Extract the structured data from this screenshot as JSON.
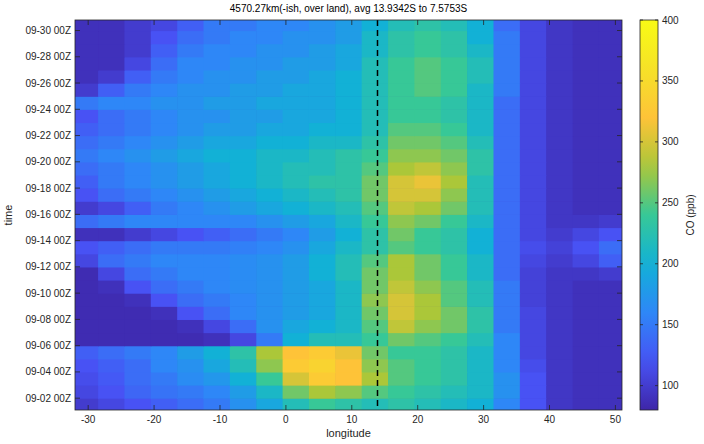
{
  "chart_data": {
    "type": "heatmap",
    "title": "4570.27km(-ish, over land), avg 13.9342S to 7.5753S",
    "x_label": "longitude",
    "y_label": "time",
    "colorbar_label": "CO (ppb)",
    "xlim": [
      -32,
      51
    ],
    "ylim": [
      1.1,
      30.8
    ],
    "xticks": [
      -30,
      -20,
      -10,
      0,
      10,
      20,
      30,
      40,
      50
    ],
    "yticks": [
      {
        "value": 2,
        "label": "09-02 00Z"
      },
      {
        "value": 4,
        "label": "09-04 00Z"
      },
      {
        "value": 6,
        "label": "09-06 00Z"
      },
      {
        "value": 8,
        "label": "09-08 00Z"
      },
      {
        "value": 10,
        "label": "09-10 00Z"
      },
      {
        "value": 12,
        "label": "09-12 00Z"
      },
      {
        "value": 14,
        "label": "09-14 00Z"
      },
      {
        "value": 16,
        "label": "09-16 00Z"
      },
      {
        "value": 18,
        "label": "09-18 00Z"
      },
      {
        "value": 20,
        "label": "09-20 00Z"
      },
      {
        "value": 22,
        "label": "09-22 00Z"
      },
      {
        "value": 24,
        "label": "09-24 00Z"
      },
      {
        "value": 26,
        "label": "09-26 00Z"
      },
      {
        "value": 28,
        "label": "09-28 00Z"
      },
      {
        "value": 30,
        "label": "09-30 00Z"
      }
    ],
    "clim": [
      80,
      400
    ],
    "cticks": [
      100,
      150,
      200,
      250,
      300,
      350,
      400
    ],
    "vline": 13.9,
    "x": [
      -30.5,
      -26.5,
      -22.5,
      -18.5,
      -14.5,
      -10.5,
      -6.5,
      -2.5,
      1.5,
      5.5,
      9.5,
      13.5,
      17.5,
      21.5,
      25.5,
      29.5,
      33.5,
      37.5,
      41.5,
      45.5,
      49.5
    ],
    "y": [
      1.5,
      2.5,
      3.5,
      4.5,
      5.5,
      6.5,
      7.5,
      8.5,
      9.5,
      10.5,
      11.5,
      12.5,
      13.5,
      14.5,
      15.5,
      16.5,
      17.5,
      18.5,
      19.5,
      20.5,
      21.5,
      22.5,
      23.5,
      24.5,
      25.5,
      26.5,
      27.5,
      28.5,
      29.5,
      30.5
    ],
    "values": [
      [
        100,
        110,
        120,
        130,
        140,
        150,
        170,
        190,
        220,
        240,
        230,
        220,
        230,
        220,
        210,
        200,
        160,
        120,
        95,
        90,
        90
      ],
      [
        110,
        120,
        135,
        145,
        150,
        160,
        180,
        210,
        260,
        280,
        270,
        250,
        240,
        230,
        220,
        210,
        170,
        120,
        95,
        90,
        90
      ],
      [
        115,
        125,
        140,
        150,
        165,
        175,
        200,
        240,
        300,
        330,
        320,
        280,
        250,
        240,
        230,
        210,
        170,
        120,
        95,
        90,
        90
      ],
      [
        120,
        130,
        140,
        160,
        170,
        190,
        220,
        270,
        330,
        340,
        320,
        270,
        250,
        240,
        230,
        210,
        160,
        115,
        95,
        90,
        90
      ],
      [
        130,
        140,
        150,
        160,
        180,
        200,
        230,
        280,
        320,
        330,
        310,
        260,
        240,
        240,
        230,
        210,
        160,
        110,
        95,
        90,
        90
      ],
      [
        85,
        85,
        85,
        85,
        85,
        90,
        110,
        150,
        200,
        220,
        220,
        240,
        260,
        250,
        240,
        220,
        160,
        110,
        95,
        90,
        90
      ],
      [
        85,
        85,
        85,
        85,
        90,
        110,
        140,
        170,
        190,
        200,
        210,
        250,
        290,
        270,
        260,
        230,
        150,
        110,
        95,
        90,
        90
      ],
      [
        85,
        85,
        85,
        90,
        120,
        140,
        160,
        170,
        180,
        190,
        210,
        260,
        300,
        280,
        260,
        230,
        150,
        110,
        95,
        90,
        90
      ],
      [
        85,
        85,
        90,
        120,
        140,
        150,
        160,
        170,
        180,
        190,
        210,
        270,
        300,
        280,
        250,
        220,
        150,
        105,
        95,
        90,
        90
      ],
      [
        85,
        90,
        120,
        140,
        150,
        160,
        165,
        170,
        180,
        190,
        210,
        260,
        290,
        270,
        250,
        220,
        150,
        105,
        95,
        90,
        90
      ],
      [
        85,
        110,
        140,
        150,
        160,
        160,
        165,
        170,
        180,
        200,
        220,
        260,
        280,
        260,
        240,
        210,
        140,
        105,
        95,
        95,
        100
      ],
      [
        110,
        140,
        150,
        160,
        160,
        160,
        165,
        170,
        180,
        200,
        220,
        250,
        280,
        260,
        240,
        210,
        140,
        110,
        100,
        110,
        130
      ],
      [
        120,
        130,
        140,
        150,
        150,
        150,
        155,
        160,
        170,
        190,
        210,
        230,
        250,
        240,
        230,
        200,
        140,
        115,
        105,
        120,
        140
      ],
      [
        90,
        90,
        100,
        110,
        120,
        130,
        140,
        150,
        160,
        180,
        200,
        230,
        260,
        240,
        230,
        200,
        140,
        110,
        100,
        110,
        120
      ],
      [
        140,
        150,
        160,
        160,
        160,
        160,
        160,
        170,
        180,
        190,
        210,
        240,
        270,
        260,
        240,
        210,
        140,
        110,
        95,
        95,
        100
      ],
      [
        100,
        110,
        130,
        150,
        160,
        170,
        180,
        190,
        200,
        210,
        220,
        250,
        290,
        280,
        260,
        220,
        140,
        110,
        95,
        90,
        90
      ],
      [
        120,
        140,
        150,
        160,
        170,
        180,
        190,
        200,
        210,
        220,
        230,
        260,
        300,
        300,
        270,
        220,
        140,
        110,
        95,
        90,
        90
      ],
      [
        130,
        150,
        160,
        170,
        180,
        190,
        200,
        210,
        220,
        230,
        230,
        260,
        300,
        310,
        280,
        220,
        140,
        110,
        95,
        90,
        90
      ],
      [
        140,
        150,
        160,
        170,
        180,
        190,
        200,
        210,
        220,
        220,
        230,
        250,
        280,
        290,
        270,
        230,
        140,
        110,
        95,
        90,
        90
      ],
      [
        150,
        160,
        170,
        180,
        190,
        200,
        200,
        210,
        210,
        220,
        230,
        240,
        270,
        270,
        260,
        230,
        140,
        110,
        95,
        90,
        90
      ],
      [
        140,
        150,
        160,
        170,
        180,
        190,
        190,
        200,
        200,
        210,
        210,
        230,
        260,
        260,
        250,
        220,
        140,
        110,
        95,
        90,
        90
      ],
      [
        130,
        140,
        150,
        160,
        170,
        180,
        180,
        190,
        190,
        200,
        200,
        220,
        250,
        250,
        240,
        210,
        140,
        110,
        95,
        90,
        90
      ],
      [
        120,
        140,
        150,
        160,
        170,
        170,
        180,
        180,
        190,
        190,
        200,
        220,
        240,
        240,
        230,
        210,
        140,
        110,
        95,
        90,
        90
      ],
      [
        150,
        160,
        160,
        170,
        170,
        180,
        180,
        190,
        190,
        190,
        200,
        220,
        240,
        240,
        230,
        210,
        140,
        110,
        95,
        90,
        90
      ],
      [
        100,
        130,
        150,
        160,
        170,
        170,
        180,
        180,
        190,
        190,
        200,
        220,
        240,
        250,
        240,
        210,
        150,
        110,
        95,
        90,
        90
      ],
      [
        90,
        100,
        130,
        150,
        160,
        170,
        170,
        180,
        180,
        190,
        200,
        220,
        240,
        250,
        240,
        220,
        150,
        110,
        95,
        90,
        90
      ],
      [
        90,
        90,
        110,
        140,
        160,
        160,
        170,
        170,
        180,
        180,
        190,
        220,
        240,
        250,
        240,
        220,
        150,
        110,
        95,
        90,
        90
      ],
      [
        90,
        90,
        100,
        130,
        150,
        160,
        160,
        170,
        170,
        180,
        190,
        210,
        230,
        240,
        230,
        210,
        150,
        110,
        95,
        90,
        90
      ],
      [
        90,
        90,
        100,
        120,
        140,
        150,
        160,
        160,
        170,
        170,
        180,
        210,
        230,
        240,
        230,
        200,
        150,
        110,
        95,
        90,
        90
      ],
      [
        90,
        90,
        100,
        110,
        130,
        150,
        150,
        160,
        160,
        170,
        180,
        200,
        220,
        230,
        220,
        200,
        140,
        110,
        95,
        90,
        90
      ]
    ]
  }
}
